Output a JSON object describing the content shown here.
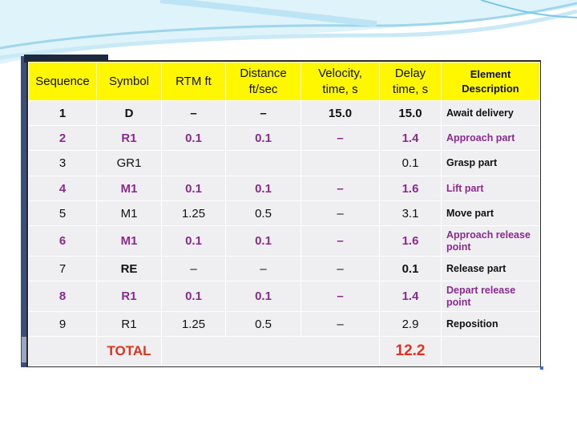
{
  "headers": {
    "sequence": "Sequence",
    "symbol": "Symbol",
    "rtm": "RTM ft",
    "distance": "Distance ft/sec",
    "velocity": "Velocity, time, s",
    "delay": "Delay time, s",
    "element": "Element Description"
  },
  "rows": [
    {
      "seq": "1",
      "symbol": "D",
      "rtm": "–",
      "distance": "–",
      "velocity": "15.0",
      "delay": "15.0",
      "desc": "Await delivery"
    },
    {
      "seq": "2",
      "symbol": "R1",
      "rtm": "0.1",
      "distance": "0.1",
      "velocity": "–",
      "delay": "1.4",
      "desc": "Approach part"
    },
    {
      "seq": "3",
      "symbol": "GR1",
      "rtm": "",
      "distance": "",
      "velocity": "",
      "delay": "0.1",
      "desc": "Grasp part"
    },
    {
      "seq": "4",
      "symbol": "M1",
      "rtm": "0.1",
      "distance": "0.1",
      "velocity": "–",
      "delay": "1.6",
      "desc": "Lift part"
    },
    {
      "seq": "5",
      "symbol": "M1",
      "rtm": "1.25",
      "distance": "0.5",
      "velocity": "–",
      "delay": "3.1",
      "desc": "Move part"
    },
    {
      "seq": "6",
      "symbol": "M1",
      "rtm": "0.1",
      "distance": "0.1",
      "velocity": "–",
      "delay": "1.6",
      "desc": "Approach release point"
    },
    {
      "seq": "7",
      "symbol": "RE",
      "rtm": "–",
      "distance": "–",
      "velocity": "–",
      "delay": "0.1",
      "desc": "Release part"
    },
    {
      "seq": "8",
      "symbol": "R1",
      "rtm": "0.1",
      "distance": "0.1",
      "velocity": "–",
      "delay": "1.4",
      "desc": "Depart release point"
    },
    {
      "seq": "9",
      "symbol": "R1",
      "rtm": "1.25",
      "distance": "0.5",
      "velocity": "–",
      "delay": "2.9",
      "desc": "Reposition"
    }
  ],
  "total": {
    "label": "TOTAL",
    "value": "12.2"
  },
  "colors": {
    "header_bg": "#fff700",
    "highlight_text": "#8a2a8e",
    "total_text": "#e0321e"
  }
}
